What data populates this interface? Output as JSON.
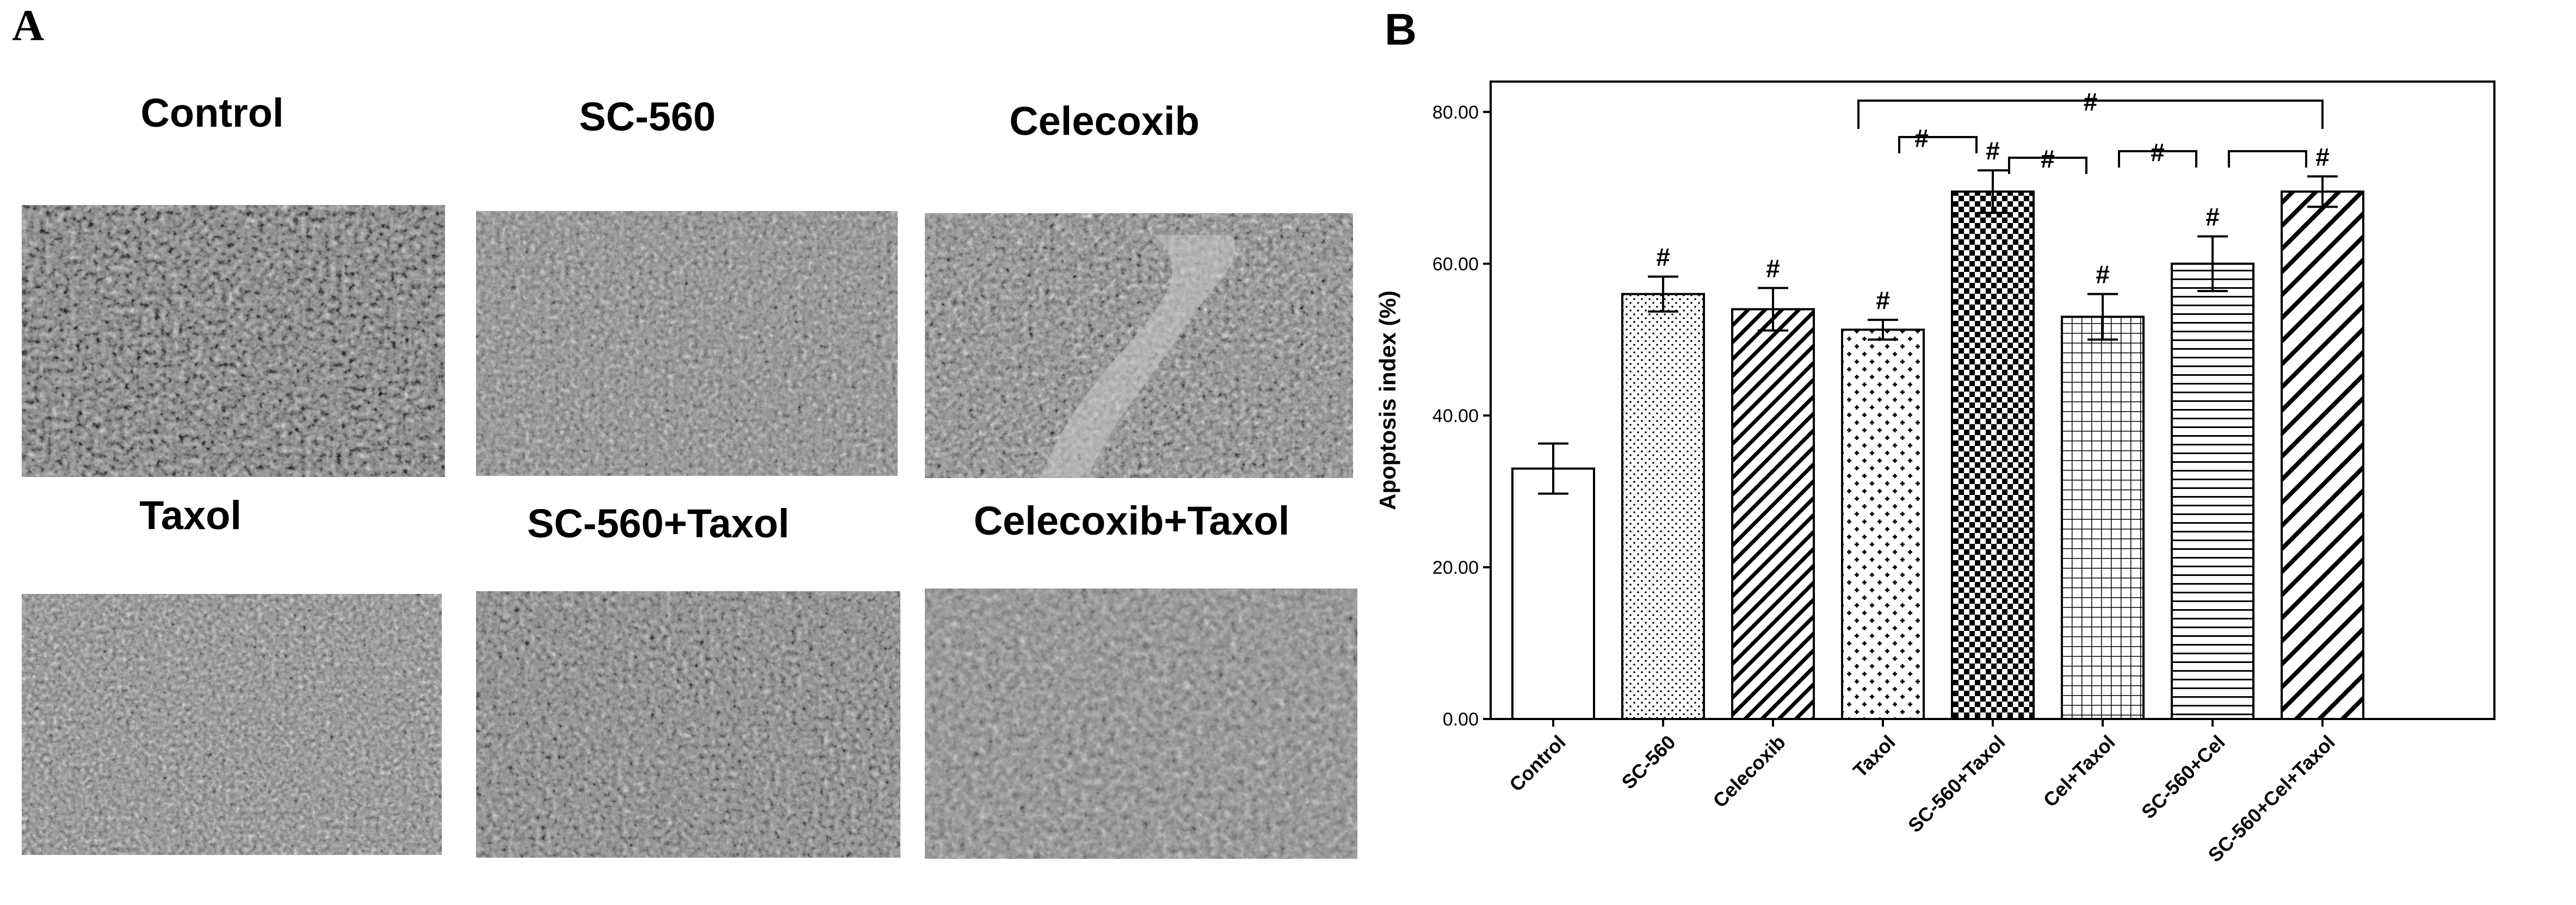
{
  "panel_a": {
    "letter": "A",
    "images": [
      {
        "title": "Control"
      },
      {
        "title": "SC-560"
      },
      {
        "title": "Celecoxib"
      },
      {
        "title": "Taxol"
      },
      {
        "title": "SC-560+Taxol"
      },
      {
        "title": "Celecoxib+Taxol"
      }
    ]
  },
  "panel_b": {
    "letter": "B"
  },
  "chart_data": {
    "type": "bar",
    "ylabel": "Apoptosis index (%)",
    "xlabel": "",
    "ylim": [
      0,
      84
    ],
    "yticks": [
      "0.00",
      "20.00",
      "40.00",
      "60.00",
      "80.00"
    ],
    "ytick_values": [
      0,
      20,
      40,
      60,
      80
    ],
    "categories": [
      "Control",
      "SC-560",
      "Celecoxib",
      "Taxol",
      "SC-560+Taxol",
      "Cel+Taxol",
      "SC-560+Cel",
      "SC-560+Cel+Taxol"
    ],
    "values": [
      33.0,
      56.0,
      54.0,
      51.3,
      69.5,
      53.0,
      60.0,
      69.5
    ],
    "error": [
      3.3,
      2.3,
      2.8,
      1.3,
      2.8,
      3.0,
      3.6,
      2.0
    ],
    "patterns": [
      "white",
      "dots",
      "diag",
      "cross",
      "check",
      "grid",
      "hlines",
      "diag-wide"
    ],
    "significance_marks": [
      "",
      "#",
      "#",
      "#",
      "#",
      "#",
      "#",
      "#"
    ],
    "brackets": [
      {
        "from": 3,
        "to": 7,
        "label": "#"
      },
      {
        "from": 3,
        "to": 4,
        "label": "#"
      },
      {
        "from": 4,
        "to": 5,
        "label": "#"
      },
      {
        "from": 5,
        "to": 6,
        "label": "#"
      },
      {
        "from": 6,
        "to": 7,
        "label": ""
      }
    ],
    "colors": {
      "bar_edge": "#000000",
      "bar_fill": "#ffffff"
    }
  }
}
